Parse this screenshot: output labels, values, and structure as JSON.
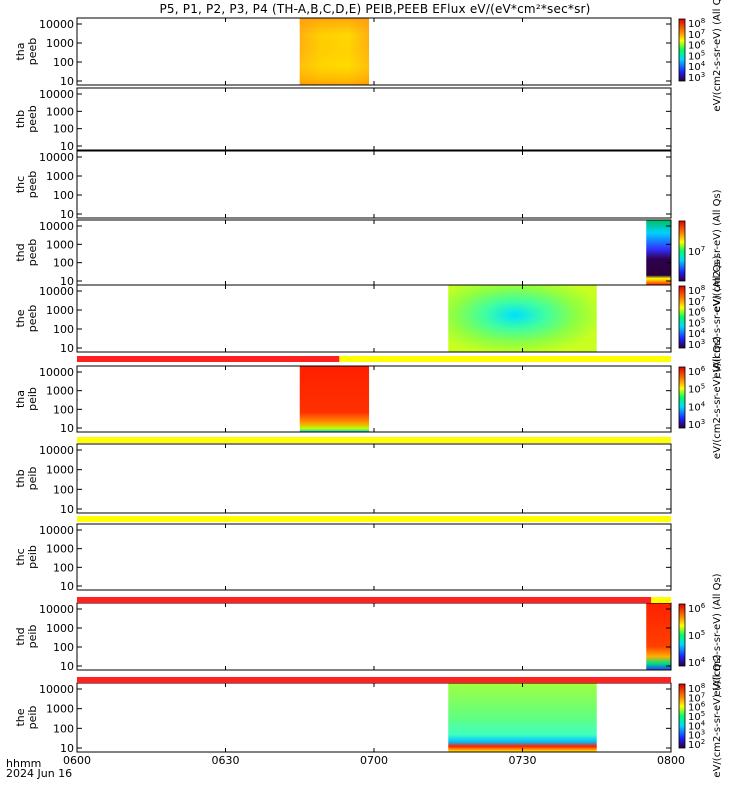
{
  "title": "P5, P1, P2, P3, P4 (TH-A,B,C,D,E) PEIB,PEEB EFlux eV/(eV*cm²*sec*sr)",
  "footer": {
    "line1": "hhmm",
    "line2": "2024 Jun 16"
  },
  "chart_data": {
    "type": "heatmap",
    "x_axis": {
      "ticks": [
        "0600",
        "0630",
        "0700",
        "0730",
        "0800"
      ],
      "range_minutes": [
        360,
        480
      ]
    },
    "y_axis": {
      "scale": "log",
      "ticks": [
        "10",
        "100",
        "1000",
        "10000"
      ]
    },
    "panels": [
      {
        "probe": "tha",
        "species": "peeb",
        "data_start": "0645",
        "data_end": "0659",
        "colorbar": {
          "ticks": [
            "10^8",
            "10^7",
            "10^6",
            "10^5",
            "10^4",
            "10^3"
          ],
          "label": "eV/(cm2-s-sr-eV) (All Qs)"
        }
      },
      {
        "probe": "thb",
        "species": "peeb",
        "data_start": null,
        "data_end": null
      },
      {
        "probe": "thc",
        "species": "peeb",
        "data_start": null,
        "data_end": null
      },
      {
        "probe": "thd",
        "species": "peeb",
        "data_start": "0755",
        "data_end": "0801",
        "colorbar": {
          "ticks": [
            "10^7"
          ],
          "label": "eV/(cm2-s-sr-eV) (All Qs)"
        }
      },
      {
        "probe": "the",
        "species": "peeb",
        "data_start": "0715",
        "data_end": "0745",
        "colorbar": {
          "ticks": [
            "10^8",
            "10^7",
            "10^6",
            "10^5",
            "10^4",
            "10^3"
          ],
          "label": "eV/(cm2-s-sr-eV) (All Qs)"
        }
      },
      {
        "probe": "tha",
        "species": "peib",
        "data_start": "0645",
        "data_end": "0659",
        "colorbar": {
          "ticks": [
            "10^6",
            "10^5",
            "10^4",
            "10^3"
          ],
          "label": "eV/(cm2-s-sr-eV) (All Qs)"
        }
      },
      {
        "probe": "thb",
        "species": "peib",
        "data_start": null,
        "data_end": null
      },
      {
        "probe": "thc",
        "species": "peib",
        "data_start": null,
        "data_end": null
      },
      {
        "probe": "thd",
        "species": "peib",
        "data_start": "0755",
        "data_end": "0801",
        "colorbar": {
          "ticks": [
            "10^6",
            "10^5",
            "10^4"
          ],
          "label": "eV/(cm2-s-sr-eV) (All Qs)"
        }
      },
      {
        "probe": "the",
        "species": "peib",
        "data_start": "0715",
        "data_end": "0745",
        "colorbar": {
          "ticks": [
            "10^8",
            "10^7",
            "10^6",
            "10^5",
            "10^4",
            "10^3",
            "10^2"
          ],
          "label": "eV/(cm2-s-sr-eV) (All Qs)"
        }
      }
    ],
    "mode_bars": [
      {
        "before_panel": 5,
        "segments": [
          {
            "from": "0600",
            "to": "0653",
            "color": "#ff2020"
          },
          {
            "from": "0653",
            "to": "0800",
            "color": "#ffff00"
          }
        ]
      },
      {
        "before_panel": 6,
        "segments": [
          {
            "from": "0600",
            "to": "0800",
            "color": "#ffff00"
          }
        ]
      },
      {
        "before_panel": 7,
        "segments": [
          {
            "from": "0600",
            "to": "0800",
            "color": "#ffff00"
          }
        ]
      },
      {
        "before_panel": 8,
        "segments": [
          {
            "from": "0600",
            "to": "0756",
            "color": "#ff2020"
          },
          {
            "from": "0756",
            "to": "0800",
            "color": "#ffff00"
          }
        ]
      },
      {
        "before_panel": 9,
        "segments": [
          {
            "from": "0600",
            "to": "0800",
            "color": "#ff2020"
          }
        ]
      }
    ],
    "colors": {
      "red": "#ff2020",
      "yellow": "#ffff00",
      "background": "#ffffff"
    }
  }
}
